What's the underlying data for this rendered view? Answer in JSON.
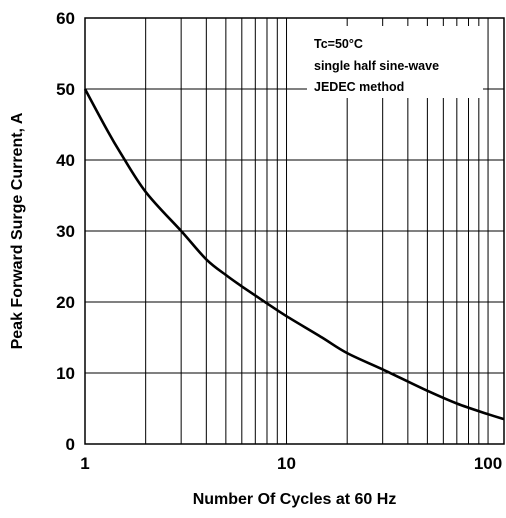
{
  "chart_data": {
    "type": "line",
    "xlabel": "Number Of Cycles at 60 Hz",
    "ylabel": "Peak Forward Surge Current, A",
    "xscale": "log",
    "xlim": [
      1,
      120
    ],
    "ylim": [
      0,
      60
    ],
    "x_ticks": [
      1,
      10,
      100
    ],
    "x_tick_labels": [
      "1",
      "10",
      "100"
    ],
    "y_ticks": [
      0,
      10,
      20,
      30,
      40,
      50,
      60
    ],
    "y_tick_labels": [
      "0",
      "10",
      "20",
      "30",
      "40",
      "50",
      "60"
    ],
    "grid": true,
    "annotations": [
      "Tc=50°C",
      "single half sine-wave",
      "JEDEC method"
    ],
    "series": [
      {
        "color": "#000000",
        "x": [
          1,
          1.3,
          1.5,
          2,
          3,
          4,
          5,
          6,
          8,
          10,
          15,
          20,
          30,
          50,
          70,
          100,
          120
        ],
        "y": [
          50,
          44,
          41,
          35.5,
          30,
          26,
          23.8,
          22.2,
          19.8,
          18,
          15,
          12.8,
          10.5,
          7.5,
          5.7,
          4.2,
          3.5
        ]
      }
    ]
  }
}
